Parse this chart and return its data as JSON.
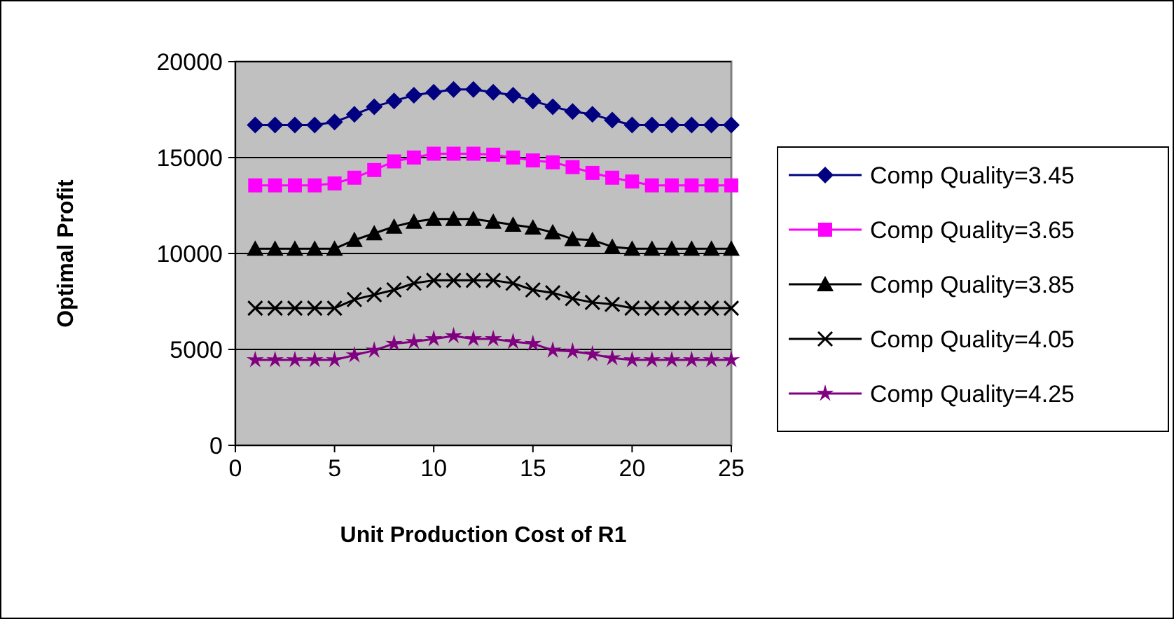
{
  "chart_data": {
    "type": "line",
    "xlabel": "Unit Production Cost of R1",
    "ylabel": "Optimal Profit",
    "x": [
      1,
      2,
      3,
      4,
      5,
      6,
      7,
      8,
      9,
      10,
      11,
      12,
      13,
      14,
      15,
      16,
      17,
      18,
      19,
      20,
      21,
      22,
      23,
      24,
      25
    ],
    "xlim": [
      0,
      25
    ],
    "xticks": [
      0,
      5,
      10,
      15,
      20,
      25
    ],
    "ylim": [
      0,
      20000
    ],
    "yticks": [
      0,
      5000,
      10000,
      15000,
      20000
    ],
    "grid": "y",
    "legend": "right",
    "line_style": "solid",
    "series": [
      {
        "name": "Comp Quality=3.45",
        "color": "#000080",
        "marker": "diamond",
        "values": [
          16700,
          16700,
          16700,
          16700,
          16850,
          17250,
          17650,
          17950,
          18250,
          18400,
          18550,
          18550,
          18400,
          18250,
          17950,
          17650,
          17400,
          17250,
          16950,
          16700,
          16700,
          16700,
          16700,
          16700,
          16700
        ]
      },
      {
        "name": "Comp Quality=3.65",
        "color": "#ff00ff",
        "marker": "square",
        "values": [
          13550,
          13550,
          13550,
          13550,
          13650,
          13950,
          14350,
          14800,
          15000,
          15200,
          15200,
          15200,
          15150,
          15000,
          14850,
          14750,
          14500,
          14200,
          13950,
          13750,
          13550,
          13550,
          13550,
          13550,
          13550
        ]
      },
      {
        "name": "Comp Quality=3.85",
        "color": "#000000",
        "marker": "triangle",
        "values": [
          10250,
          10250,
          10250,
          10250,
          10250,
          10700,
          11050,
          11400,
          11650,
          11800,
          11800,
          11800,
          11650,
          11500,
          11350,
          11100,
          10750,
          10700,
          10350,
          10250,
          10250,
          10250,
          10250,
          10250,
          10250
        ]
      },
      {
        "name": "Comp Quality=4.05",
        "color": "#000000",
        "marker": "cross",
        "values": [
          7150,
          7150,
          7150,
          7150,
          7150,
          7600,
          7850,
          8100,
          8450,
          8600,
          8600,
          8600,
          8600,
          8450,
          8100,
          7950,
          7650,
          7450,
          7350,
          7150,
          7150,
          7150,
          7150,
          7150,
          7150
        ]
      },
      {
        "name": "Comp Quality=4.25",
        "color": "#800080",
        "marker": "star",
        "values": [
          4450,
          4450,
          4450,
          4450,
          4450,
          4700,
          4950,
          5300,
          5400,
          5550,
          5700,
          5550,
          5550,
          5400,
          5300,
          4950,
          4900,
          4750,
          4550,
          4450,
          4450,
          4450,
          4450,
          4450,
          4450
        ]
      }
    ]
  }
}
